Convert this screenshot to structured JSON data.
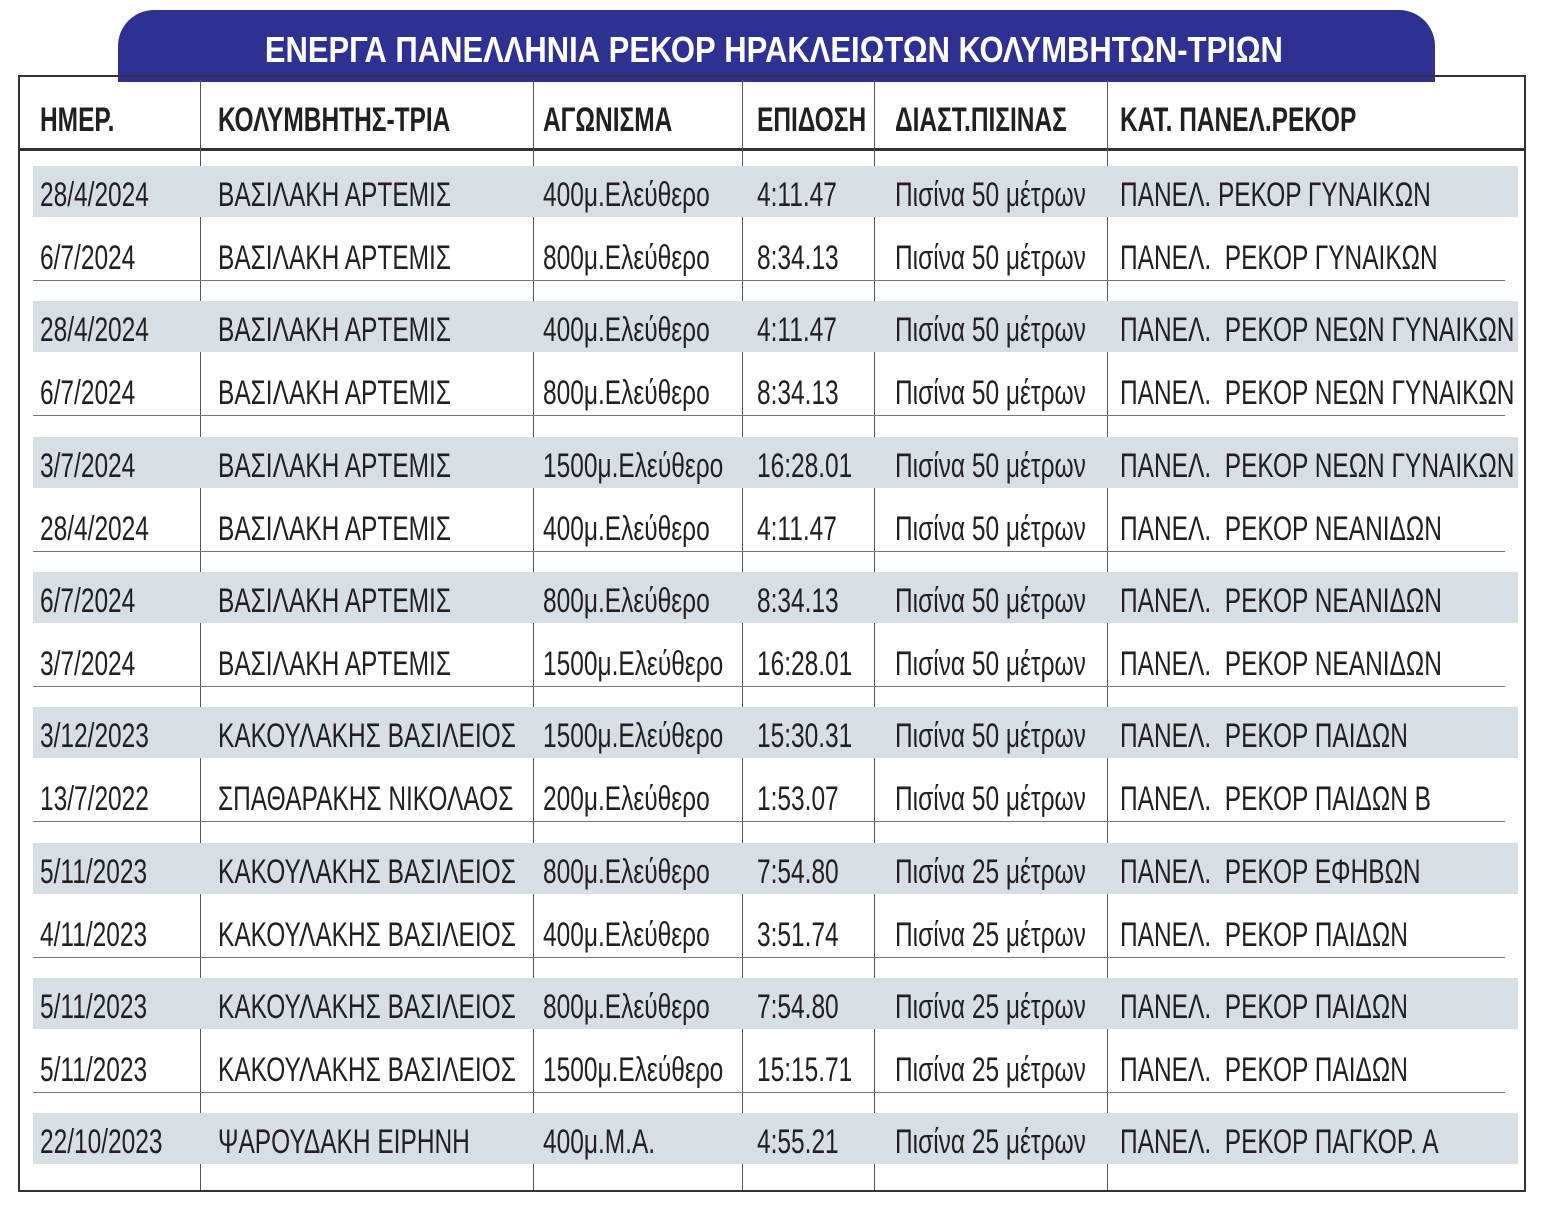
{
  "title": "ΕΝΕΡΓΑ ΠΑΝΕΛΛΗΝΙΑ ΡΕΚΟΡ ΗΡΑΚΛΕΙΩΤΩΝ ΚΟΛΥΜΒΗΤΩΝ-ΤΡΙΩΝ",
  "table": {
    "header": [
      "ΗΜΕΡ.",
      "ΚΟΛΥΜΒΗΤΗΣ-ΤΡΙΑ",
      "ΑΓΩΝΙΣΜΑ",
      "ΕΠΙΔΟΣΗ",
      "ΔΙΑΣΤ.ΠΙΣΙΝΑΣ",
      "ΚΑΤ. ΠΑΝΕΛ.ΡΕΚΟΡ"
    ],
    "rows": [
      [
        "28/4/2024",
        "ΒΑΣΙΛΑΚΗ ΑΡΤΕΜΙΣ",
        "400μ.Ελεύθερο",
        "4:11.47",
        "Πισίνα 50 μέτρων",
        "ΠΑΝΕΛ. ΡΕΚΟΡ ΓΥΝΑΙΚΩΝ"
      ],
      [
        "6/7/2024",
        "ΒΑΣΙΛΑΚΗ ΑΡΤΕΜΙΣ",
        "800μ.Ελεύθερο",
        "8:34.13",
        "Πισίνα 50 μέτρων",
        "ΠΑΝΕΛ.  ΡΕΚΟΡ ΓΥΝΑΙΚΩΝ"
      ],
      [
        "28/4/2024",
        "ΒΑΣΙΛΑΚΗ ΑΡΤΕΜΙΣ",
        "400μ.Ελεύθερο",
        "4:11.47",
        "Πισίνα 50 μέτρων",
        "ΠΑΝΕΛ.  ΡΕΚΟΡ ΝΕΩΝ ΓΥΝΑΙΚΩΝ"
      ],
      [
        "6/7/2024",
        "ΒΑΣΙΛΑΚΗ ΑΡΤΕΜΙΣ",
        "800μ.Ελεύθερο",
        "8:34.13",
        "Πισίνα 50 μέτρων",
        "ΠΑΝΕΛ.  ΡΕΚΟΡ ΝΕΩΝ ΓΥΝΑΙΚΩΝ"
      ],
      [
        "3/7/2024",
        "ΒΑΣΙΛΑΚΗ ΑΡΤΕΜΙΣ",
        "1500μ.Ελεύθερο",
        "16:28.01",
        "Πισίνα 50 μέτρων",
        "ΠΑΝΕΛ.  ΡΕΚΟΡ ΝΕΩΝ ΓΥΝΑΙΚΩΝ"
      ],
      [
        "28/4/2024",
        "ΒΑΣΙΛΑΚΗ ΑΡΤΕΜΙΣ",
        "400μ.Ελεύθερο",
        "4:11.47",
        "Πισίνα 50 μέτρων",
        "ΠΑΝΕΛ.  ΡΕΚΟΡ ΝΕΑΝΙΔΩΝ"
      ],
      [
        "6/7/2024",
        "ΒΑΣΙΛΑΚΗ ΑΡΤΕΜΙΣ",
        "800μ.Ελεύθερο",
        "8:34.13",
        "Πισίνα 50 μέτρων",
        "ΠΑΝΕΛ.  ΡΕΚΟΡ ΝΕΑΝΙΔΩΝ"
      ],
      [
        "3/7/2024",
        "ΒΑΣΙΛΑΚΗ ΑΡΤΕΜΙΣ",
        "1500μ.Ελεύθερο",
        "16:28.01",
        "Πισίνα 50 μέτρων",
        "ΠΑΝΕΛ.  ΡΕΚΟΡ ΝΕΑΝΙΔΩΝ"
      ],
      [
        "3/12/2023",
        "ΚΑΚΟΥΛΑΚΗΣ ΒΑΣΙΛΕΙΟΣ",
        "1500μ.Ελεύθερο",
        "15:30.31",
        "Πισίνα 50 μέτρων",
        "ΠΑΝΕΛ.  ΡΕΚΟΡ ΠΑΙΔΩΝ"
      ],
      [
        "13/7/2022",
        "ΣΠΑΘΑΡΑΚΗΣ ΝΙΚΟΛΑΟΣ",
        "200μ.Ελεύθερο",
        "1:53.07",
        "Πισίνα 50 μέτρων",
        "ΠΑΝΕΛ.  ΡΕΚΟΡ ΠΑΙΔΩΝ Β"
      ],
      [
        "5/11/2023",
        "ΚΑΚΟΥΛΑΚΗΣ ΒΑΣΙΛΕΙΟΣ",
        "800μ.Ελεύθερο",
        "7:54.80",
        "Πισίνα 25 μέτρων",
        "ΠΑΝΕΛ.  ΡΕΚΟΡ ΕΦΗΒΩΝ"
      ],
      [
        "4/11/2023",
        "ΚΑΚΟΥΛΑΚΗΣ ΒΑΣΙΛΕΙΟΣ",
        "400μ.Ελεύθερο",
        "3:51.74",
        "Πισίνα 25 μέτρων",
        "ΠΑΝΕΛ.  ΡΕΚΟΡ ΠΑΙΔΩΝ"
      ],
      [
        "5/11/2023",
        "ΚΑΚΟΥΛΑΚΗΣ ΒΑΣΙΛΕΙΟΣ",
        "800μ.Ελεύθερο",
        "7:54.80",
        "Πισίνα 25 μέτρων",
        "ΠΑΝΕΛ.  ΡΕΚΟΡ ΠΑΙΔΩΝ"
      ],
      [
        "5/11/2023",
        "ΚΑΚΟΥΛΑΚΗΣ ΒΑΣΙΛΕΙΟΣ",
        "1500μ.Ελεύθερο",
        "15:15.71",
        "Πισίνα 25 μέτρων",
        "ΠΑΝΕΛ.  ΡΕΚΟΡ ΠΑΙΔΩΝ"
      ],
      [
        "22/10/2023",
        "ΨΑΡΟΥΔΑΚΗ ΕΙΡΗΝΗ",
        "400μ.Μ.Α.",
        "4:55.21",
        "Πισίνα 25 μέτρων",
        "ΠΑΝΕΛ.  ΡΕΚΟΡ ΠΑΓΚΟΡ. Α"
      ]
    ]
  }
}
